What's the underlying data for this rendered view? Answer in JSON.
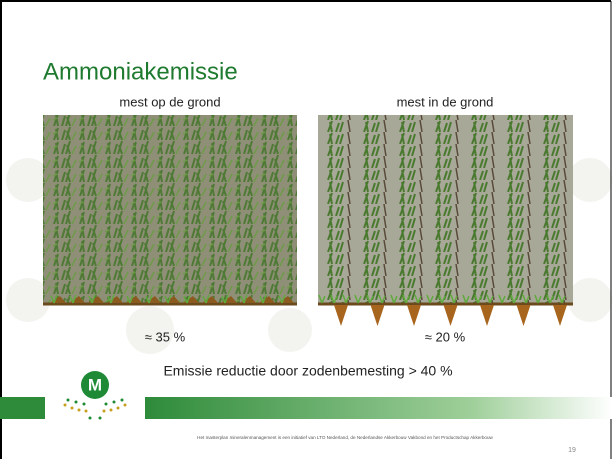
{
  "slide": {
    "title": "Ammoniakemissie",
    "left": {
      "caption": "mest op de grond",
      "result": "≈ 35 %"
    },
    "right": {
      "caption": "mest in de grond",
      "result": "≈ 20 %"
    },
    "conclusion": "Emissie reductie door zodenbemesting > 40 %",
    "logo": "M",
    "footer": "Het masterplan mineralenmanagement is een initiatief van LTO Nederland, de Nederlandse Akkerbouw Vakbond en het Productschap Akkerbouw",
    "page_number": "19"
  }
}
